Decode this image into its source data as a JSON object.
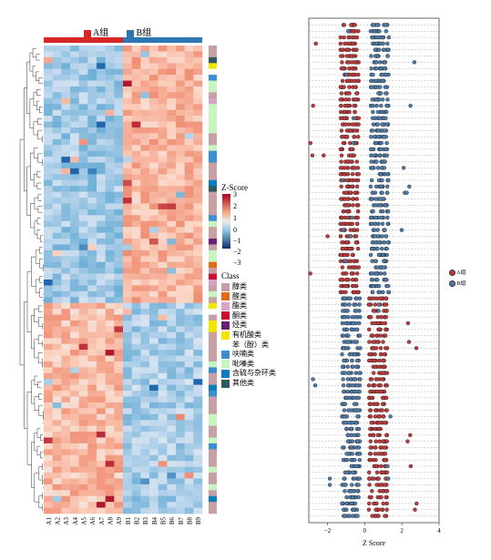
{
  "heatmap": {
    "group_header": [
      "A组",
      "B组"
    ],
    "group_colors": [
      "#d62728",
      "#2c77b4"
    ],
    "columns": [
      "A1",
      "A2",
      "A3",
      "A4",
      "A5",
      "A6",
      "A7",
      "A8",
      "A9",
      "B1",
      "B2",
      "B3",
      "B4",
      "B5",
      "B6",
      "B7",
      "B8",
      "B9"
    ],
    "zscore_legend_title": "Z-Score",
    "zscore_ticks": [
      "3",
      "2",
      "1",
      "0",
      "−1",
      "−2",
      "−3"
    ],
    "class_legend_title": "Class",
    "classes": [
      {
        "label": "醇类",
        "color": "#c7a0a6"
      },
      {
        "label": "醛类",
        "color": "#e46a16"
      },
      {
        "label": "酯类",
        "color": "#d7a3c6"
      },
      {
        "label": "酮类",
        "color": "#c8102e"
      },
      {
        "label": "烃类",
        "color": "#6a1f75"
      },
      {
        "label": "有机酸类",
        "color": "#f2e600"
      },
      {
        "label": "苯（酚）类",
        "color": "#ffffff"
      },
      {
        "label": "呋喃类",
        "color": "#3b8fd0"
      },
      {
        "label": "吡嗪类",
        "color": "#c7f5c0"
      },
      {
        "label": "含硫与杂环类",
        "color": "#0c7dbf"
      },
      {
        "label": "其他类",
        "color": "#2f5a5e"
      }
    ]
  },
  "chart_data": [
    {
      "type": "heatmap",
      "title": "",
      "columns": [
        "A1",
        "A2",
        "A3",
        "A4",
        "A5",
        "A6",
        "A7",
        "A8",
        "A9",
        "B1",
        "B2",
        "B3",
        "B4",
        "B5",
        "B6",
        "B7",
        "B8",
        "B9"
      ],
      "column_groups": [
        "A组",
        "A组",
        "A组",
        "A组",
        "A组",
        "A组",
        "A组",
        "A组",
        "A组",
        "B组",
        "B组",
        "B组",
        "B组",
        "B组",
        "B组",
        "B组",
        "B组",
        "B组"
      ],
      "row_count": 80,
      "zlim": [
        -3,
        3
      ],
      "block_pattern": {
        "rows_1_to_44": "A low / B high",
        "rows_45_to_80": "A high / B low"
      },
      "row_class_order": [
        "醇类",
        "醇类",
        "其他类",
        "有机酸类",
        "苯（酚）类",
        "呋喃类",
        "吡嗪类",
        "吡嗪类",
        "醇类",
        "酯类",
        "吡嗪类",
        "吡嗪类",
        "吡嗪类",
        "吡嗪类",
        "吡嗪类",
        "醇类",
        "醇类",
        "吡嗪类",
        "呋喃类",
        "呋喃类",
        "醇类",
        "醇类",
        "醇类",
        "含硫与杂环类",
        "其他类",
        "醇类",
        "醇类",
        "醇类",
        "醇类",
        "呋喃类",
        "吡嗪类",
        "醇类",
        "醇类",
        "烃类",
        "醇类",
        "吡嗪类",
        "吡嗪类",
        "醛类",
        "醇类",
        "酮类",
        "酯类",
        "醇类",
        "吡嗪类",
        "醇类",
        "有机酸类",
        "苯（酚）类",
        "醇类",
        "有机酸类",
        "有机酸类",
        "醇类",
        "醇类",
        "醇类",
        "醇类",
        "醇类",
        "吡嗪类",
        "呋喃类",
        "醇类",
        "醇类",
        "含硫与杂环类",
        "呋喃类",
        "醇类",
        "醇类",
        "醇类",
        "吡嗪类",
        "吡嗪类",
        "醇类",
        "醇类",
        "吡嗪类",
        "呋喃类",
        "醇类",
        "醇类",
        "醇类",
        "吡嗪类",
        "醇类",
        "醇类",
        "吡嗪类",
        "醇类",
        "含硫与杂环类",
        "醇类",
        "醇类"
      ]
    },
    {
      "type": "scatter",
      "title": "",
      "xlabel": "Z Score",
      "ylabel": "",
      "xlim": [
        -3,
        4
      ],
      "xticks": [
        -2,
        0,
        2,
        4
      ],
      "row_count": 80,
      "legend_position": "right",
      "series": [
        {
          "name": "A组",
          "color": "#c0393b",
          "points_per_row": 9
        },
        {
          "name": "B组",
          "color": "#4f7dab",
          "points_per_row": 9
        }
      ]
    }
  ]
}
